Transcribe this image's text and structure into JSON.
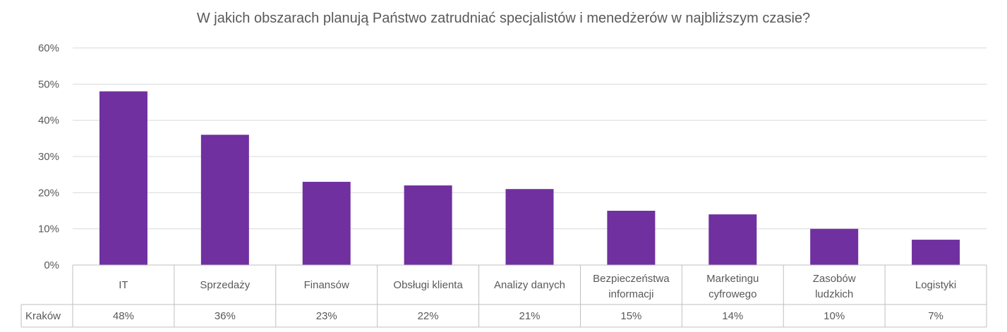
{
  "chart_data": {
    "type": "bar",
    "title": "W jakich obszarach planują Państwo zatrudniać specjalistów i menedżerów w najbliższym czasie?",
    "categories": [
      "IT",
      "Sprzedaży",
      "Finansów",
      "Obsługi klienta",
      "Analizy danych",
      "Bezpieczeństwa informacji",
      "Marketingu cyfrowego",
      "Zasobów ludzkich",
      "Logistyki"
    ],
    "series": [
      {
        "name": "Kraków",
        "values": [
          48,
          36,
          23,
          22,
          21,
          15,
          14,
          10,
          7
        ],
        "value_labels": [
          "48%",
          "36%",
          "23%",
          "22%",
          "21%",
          "15%",
          "14%",
          "10%",
          "7%"
        ]
      }
    ],
    "ylim": [
      0,
      60
    ],
    "yticks": [
      "0%",
      "10%",
      "20%",
      "30%",
      "40%",
      "50%",
      "60%"
    ],
    "grid": true,
    "legend": "data-table",
    "bar_color": "#7030A0"
  }
}
